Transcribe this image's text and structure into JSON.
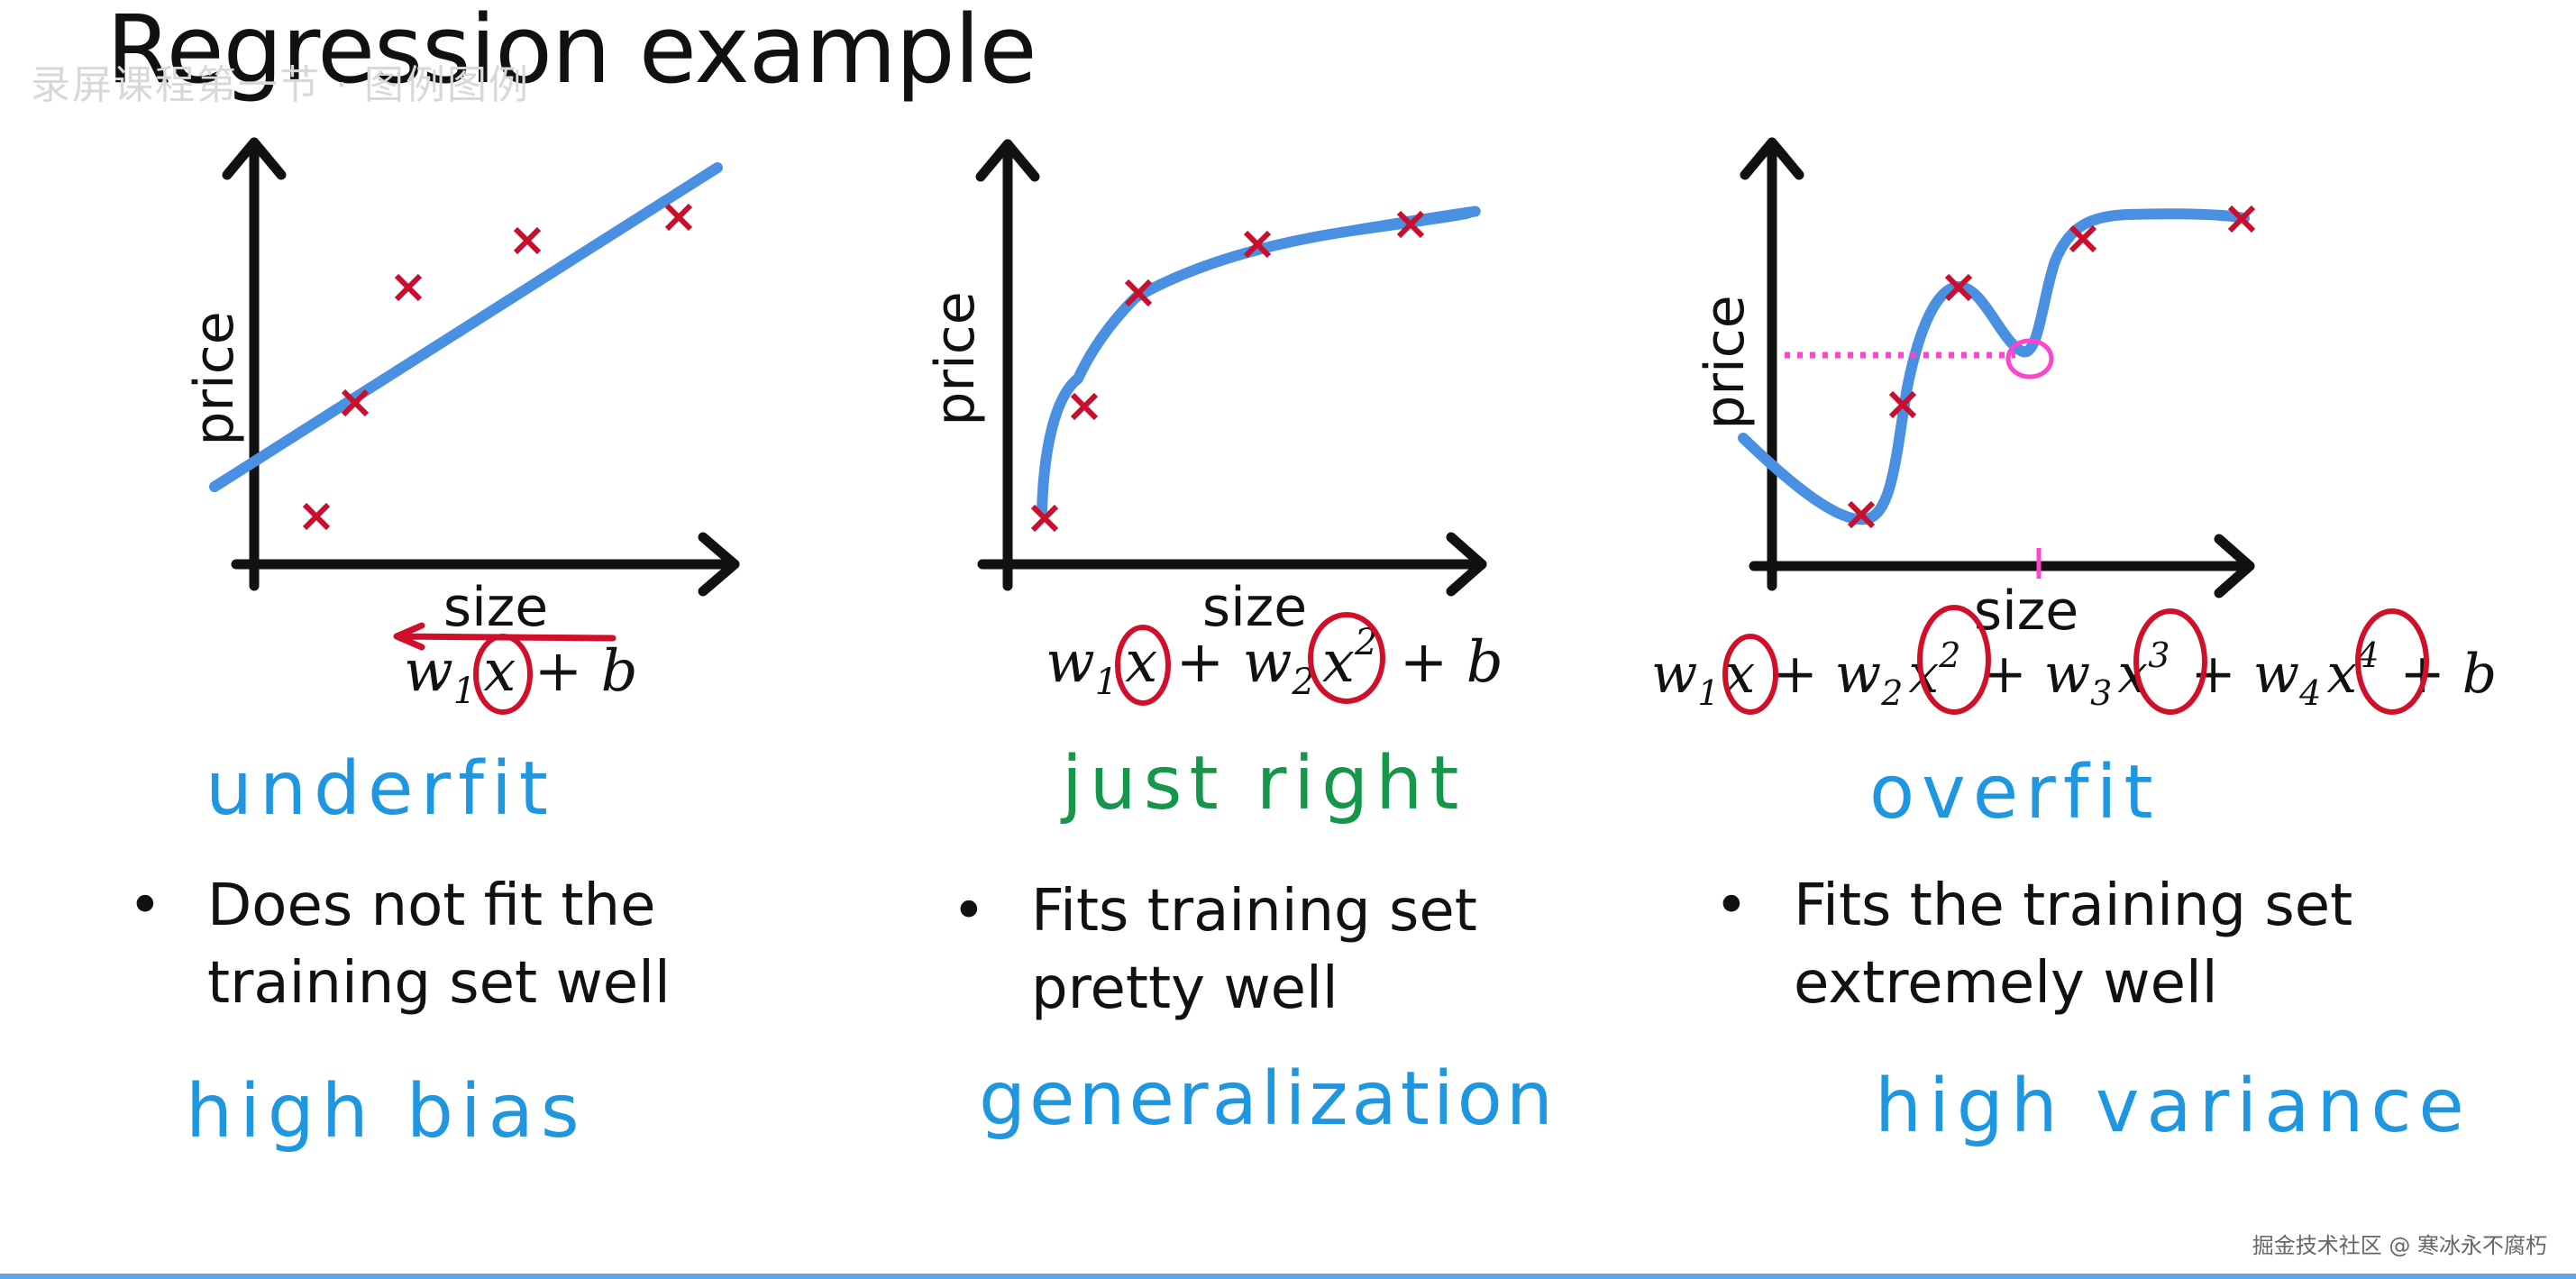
{
  "title": "Regression example",
  "ghost_header": "录屏课程第一节 · 图例图例",
  "watermark": "掘金技术社区 @ 寒冰永不腐朽",
  "colors": {
    "curve": "#4a90e2",
    "point": "#c8102e",
    "annotation_pink": "#ff44cc",
    "circle_red": "#d0102a",
    "blue_text": "#1e96e0",
    "green_text": "#16964a"
  },
  "panels": [
    {
      "id": "underfit",
      "xlabel": "size",
      "ylabel": "price",
      "formula": [
        {
          "t": "w"
        },
        {
          "sub": "1"
        },
        {
          "t": "x",
          "circled": true
        },
        {
          "t": " + b"
        }
      ],
      "label": "underfit",
      "label_color": "blue",
      "bullet": [
        "Does not fit the",
        "training set well"
      ],
      "tag": "high bias"
    },
    {
      "id": "just-right",
      "xlabel": "size",
      "ylabel": "price",
      "formula": [
        {
          "t": "w"
        },
        {
          "sub": "1"
        },
        {
          "t": "x",
          "circled": true
        },
        {
          "t": " + w"
        },
        {
          "sub": "2"
        },
        {
          "t": "x",
          "sup": "2",
          "circled": true
        },
        {
          "t": " + b"
        }
      ],
      "label": "just right",
      "label_color": "green",
      "bullet": [
        "Fits training set",
        "pretty well"
      ],
      "tag": "generalization"
    },
    {
      "id": "overfit",
      "xlabel": "size",
      "ylabel": "price",
      "formula": [
        {
          "t": "w"
        },
        {
          "sub": "1"
        },
        {
          "t": "x",
          "circled": true
        },
        {
          "t": " + w"
        },
        {
          "sub": "2"
        },
        {
          "t": "x",
          "sup": "2",
          "circled": true
        },
        {
          "t": " + w"
        },
        {
          "sub": "3"
        },
        {
          "t": "x",
          "sup": "3",
          "circled": true
        },
        {
          "t": " + w"
        },
        {
          "sub": "4"
        },
        {
          "t": "x",
          "sup": "4",
          "circled": true
        },
        {
          "t": " + b"
        }
      ],
      "label": "overfit",
      "label_color": "blue",
      "bullet": [
        "Fits the training set",
        "extremely well"
      ],
      "tag": "high variance"
    }
  ]
}
